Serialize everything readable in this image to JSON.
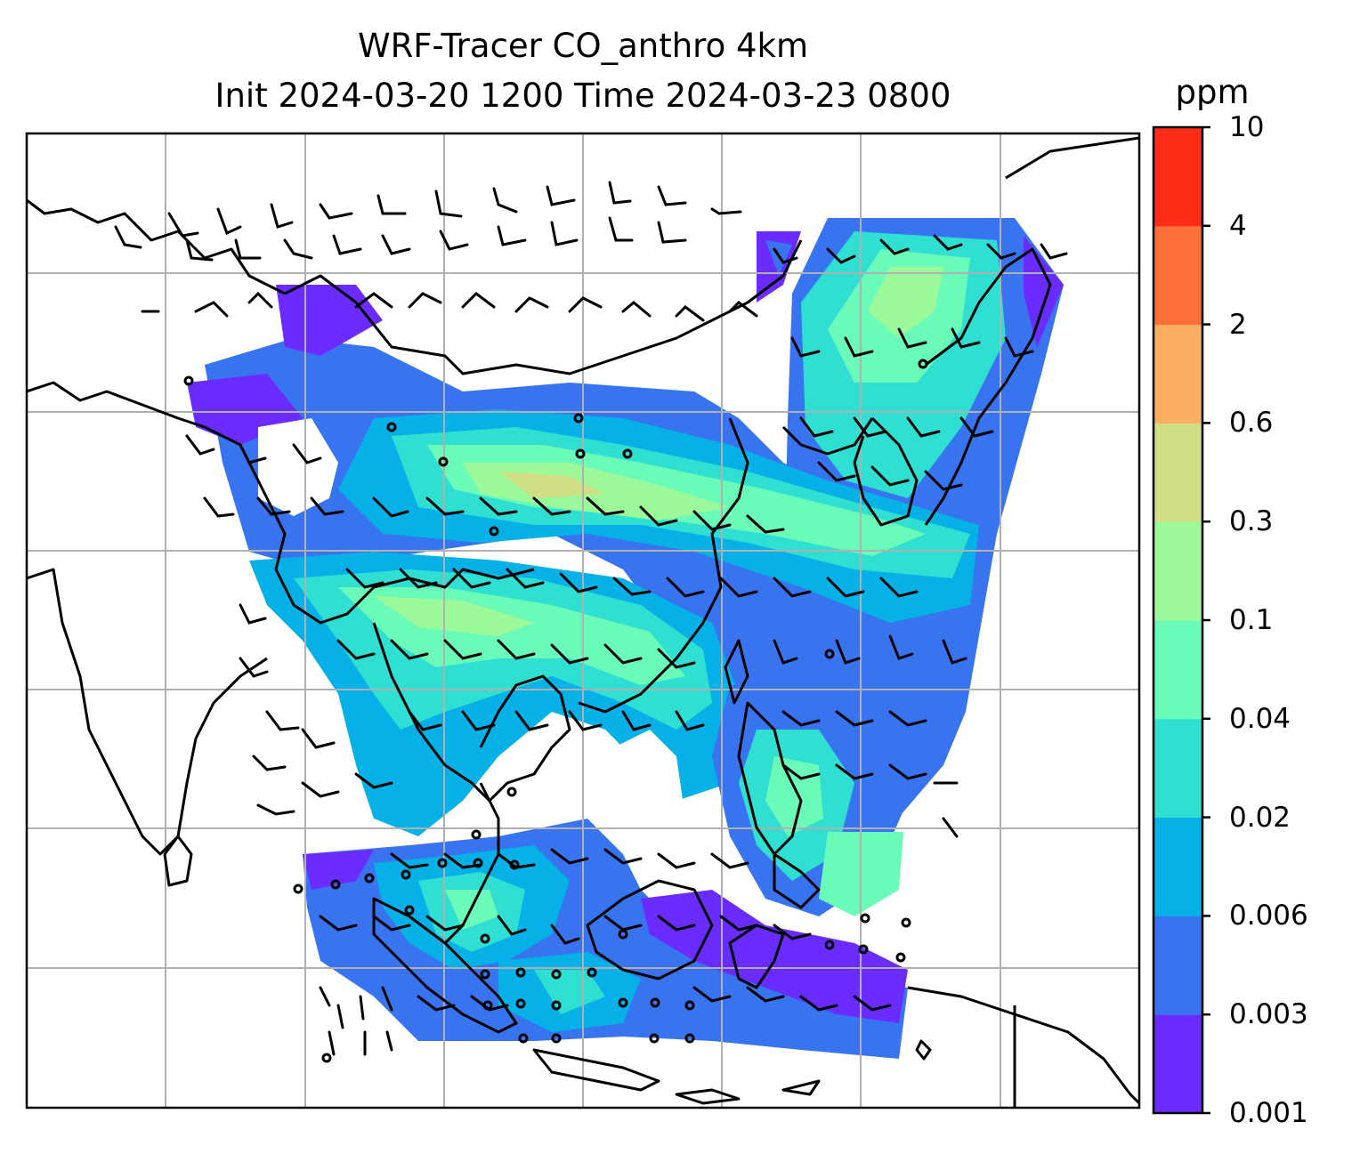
{
  "title": {
    "line1": "WRF-Tracer CO_anthro 4km",
    "line2": "Init 2024-03-20 1200 Time 2024-03-23 0800"
  },
  "colorbar": {
    "units": "ppm",
    "ticks": [
      "0.001",
      "0.003",
      "0.006",
      "0.02",
      "0.04",
      "0.1",
      "0.3",
      "0.6",
      "2",
      "4",
      "10"
    ],
    "colors": [
      "#6a2bff",
      "#3874f0",
      "#05b1e6",
      "#2fe0d2",
      "#6bfbb8",
      "#9cf999",
      "#d0df84",
      "#fbae63",
      "#fe6f3b",
      "#ff2d18"
    ]
  },
  "map": {
    "field": "CO_anthro",
    "coastline_color": "#000000",
    "gridline_color": "#b0b0b0",
    "overlay": "wind barbs"
  }
}
